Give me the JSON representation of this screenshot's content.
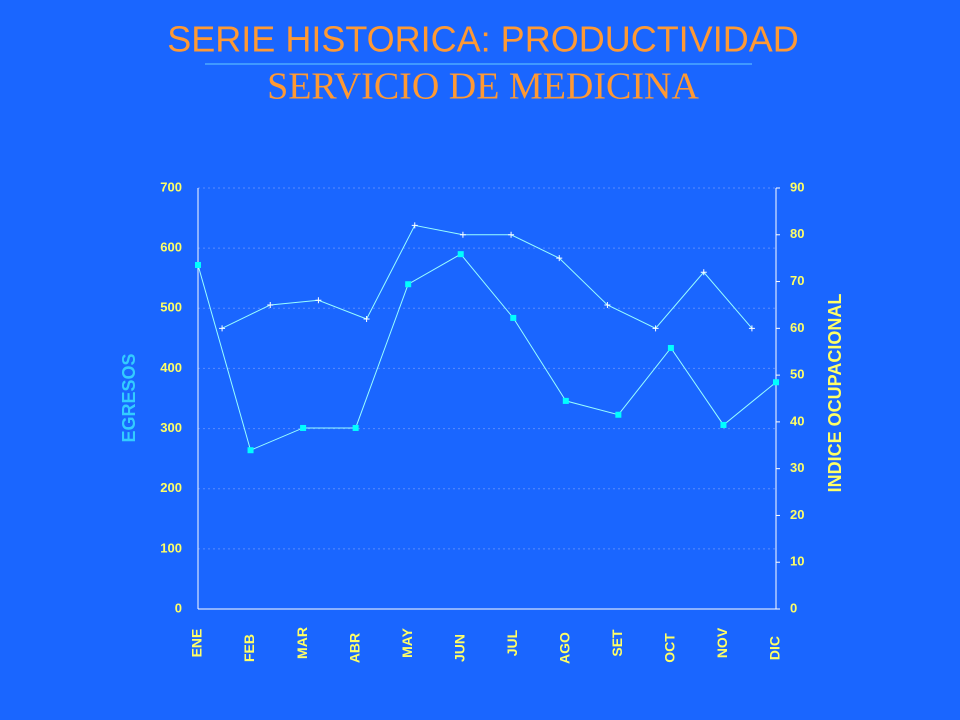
{
  "chart_data": {
    "type": "line",
    "title": "SERIE HISTORICA: PRODUCTIVIDAD",
    "subtitle": "SERVICIO DE MEDICINA",
    "y_label": "EGRESOS",
    "y2_label": "INDICE OCUPACIONAL",
    "categories": [
      "ENE",
      "FEB",
      "MAR",
      "ABR",
      "MAY",
      "JUN",
      "JUL",
      "AGO",
      "SET",
      "OCT",
      "NOV",
      "DIC"
    ],
    "series": [
      {
        "name": "EGRESOS",
        "color": "#00ffff",
        "values": [
          572,
          264,
          301,
          301,
          540,
          590,
          484,
          346,
          323,
          434,
          306,
          377
        ]
      },
      {
        "name": "INDICE OCUPACIONAL",
        "color": "#99ffff",
        "axis": "y2",
        "values": [
          60,
          65,
          66,
          62,
          82,
          80,
          80,
          75,
          65,
          60,
          72,
          60
        ]
      }
    ],
    "ylim": [
      0,
      700
    ],
    "yticks": [
      0,
      100,
      200,
      300,
      400,
      500,
      600,
      700
    ],
    "y2lim": [
      0,
      90
    ],
    "y2ticks": [
      0,
      10,
      20,
      30,
      40,
      50,
      60,
      70,
      80,
      90
    ],
    "grid": true
  }
}
